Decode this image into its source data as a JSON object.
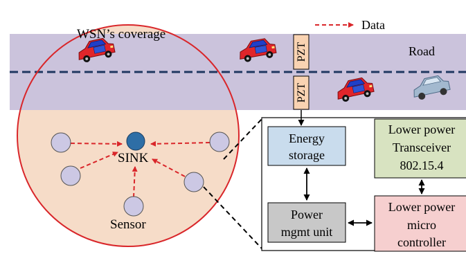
{
  "legend": {
    "label": "Data"
  },
  "road": {
    "label": "Road"
  },
  "coverage": {
    "label": "WSN’s coverage"
  },
  "pzt": {
    "top_label": "PZT",
    "bottom_label": "PZT"
  },
  "network": {
    "sink_label": "SINK",
    "sensor_label": "Sensor"
  },
  "blocks": {
    "energy_storage": [
      "Energy",
      "storage"
    ],
    "transceiver": [
      "Lower power",
      "Transceiver",
      "802.15.4"
    ],
    "power_mgmt": [
      "Power",
      "mgmt unit"
    ],
    "microcontroller": [
      "Lower power",
      "micro",
      "controller"
    ]
  },
  "colors": {
    "road": "#cbc3dc",
    "coverage_fill": "#f6dcc8",
    "coverage_border": "#d9262a",
    "sensor_node": "#ccc8e4",
    "sink_node": "#2e6ea6",
    "pzt": "#f9d3b2",
    "energy_storage": "#c9dced",
    "transceiver": "#d8e3c1",
    "power_mgmt": "#c8c8c8",
    "microcontroller": "#f6cfcf",
    "data_arrow": "#d9262a",
    "lane_line": "#1f3760"
  }
}
